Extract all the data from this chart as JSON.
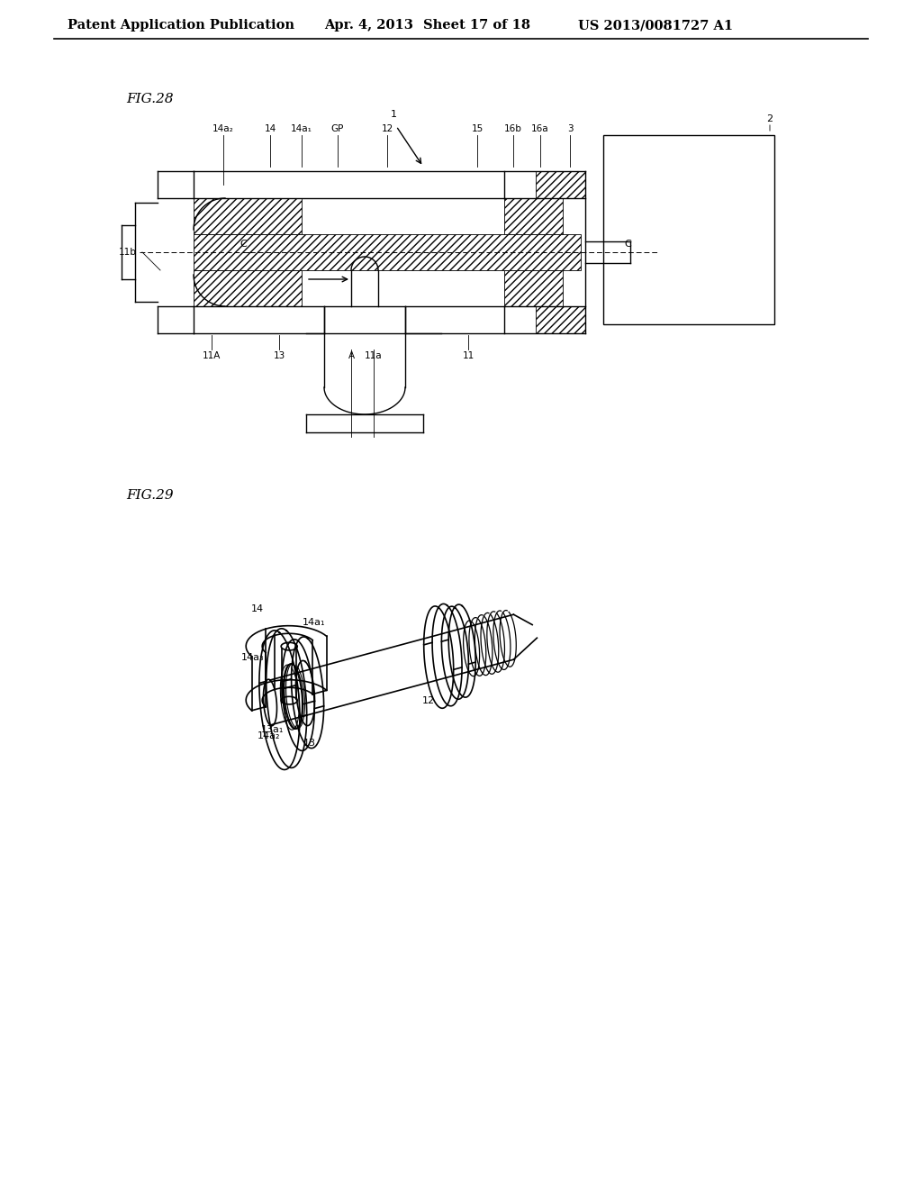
{
  "background_color": "#ffffff",
  "header_text": "Patent Application Publication",
  "header_date": "Apr. 4, 2013",
  "header_sheet": "Sheet 17 of 18",
  "header_patent": "US 2013/0081727 A1",
  "fig28_label": "FIG.28",
  "fig29_label": "FIG.29",
  "line_color": "#000000",
  "lw": 1.0,
  "lw_thin": 0.6,
  "font_size_header": 10.5,
  "font_size_label": 10,
  "font_size_callout": 8
}
